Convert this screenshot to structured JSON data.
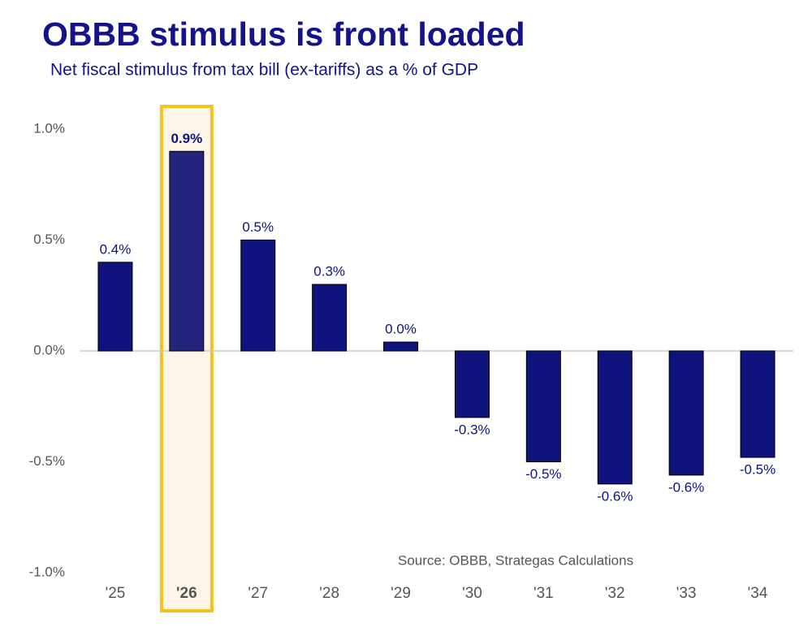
{
  "chart_data": {
    "type": "bar",
    "title": "OBBB stimulus is front loaded",
    "subtitle": "Net fiscal stimulus from tax bill (ex-tariffs) as a % of GDP",
    "annotation": "Source: OBBB, Strategas Calculations",
    "categories": [
      "'25",
      "'26",
      "'27",
      "'28",
      "'29",
      "'30",
      "'31",
      "'32",
      "'33",
      "'34"
    ],
    "values": [
      0.4,
      0.9,
      0.5,
      0.3,
      0.04,
      -0.3,
      -0.5,
      -0.6,
      -0.56,
      -0.48
    ],
    "value_labels": [
      "0.4%",
      "0.9%",
      "0.5%",
      "0.3%",
      "0.0%",
      "-0.3%",
      "-0.5%",
      "-0.6%",
      "-0.6%",
      "-0.5%"
    ],
    "color": "#10127e",
    "highlight": 1,
    "highlight_color": "#f5c21b",
    "ylim": [
      -1.0,
      1.0
    ],
    "yticks": [
      {
        "value": -1.0,
        "label": "-1.0%"
      },
      {
        "value": -0.5,
        "label": "-0.5%"
      },
      {
        "value": 0,
        "label": "0.0%"
      },
      {
        "value": 0.5,
        "label": "0.5%"
      },
      {
        "value": 1.0,
        "label": "1.0%"
      }
    ],
    "grid": false
  }
}
